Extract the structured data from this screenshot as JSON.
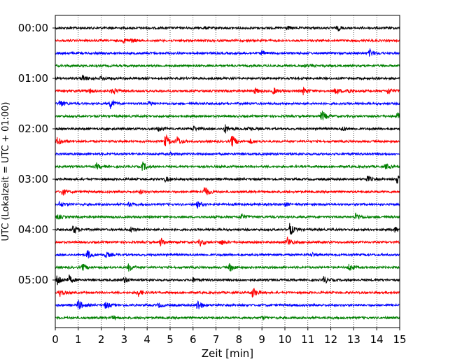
{
  "chart_data": {
    "type": "line",
    "title": "",
    "xlabel": "Zeit  [min]",
    "ylabel": "UTC (Lokalzeit = UTC + 01:00)",
    "xlim": [
      0,
      15
    ],
    "xticks": [
      "0",
      "1",
      "2",
      "3",
      "4",
      "5",
      "6",
      "7",
      "8",
      "9",
      "10",
      "11",
      "12",
      "13",
      "14",
      "15"
    ],
    "yticks": [
      "00:00",
      "01:00",
      "02:00",
      "03:00",
      "04:00",
      "05:00"
    ],
    "grid": "vertical-dotted",
    "trace_colors": [
      "#000000",
      "#ff0000",
      "#0000ff",
      "#008000"
    ],
    "traces": [
      {
        "start": "00:00",
        "events": [
          {
            "t": 12.3,
            "a": 0.35
          },
          {
            "t": 10.1,
            "a": 0.25
          },
          {
            "t": 6.5,
            "a": 0.15
          }
        ]
      },
      {
        "start": "00:15",
        "events": [
          {
            "t": 3.0,
            "a": 0.35
          },
          {
            "t": 3.3,
            "a": 0.2
          }
        ]
      },
      {
        "start": "00:30",
        "events": [
          {
            "t": 9.0,
            "a": 0.3
          },
          {
            "t": 13.7,
            "a": 0.55
          }
        ]
      },
      {
        "start": "00:45",
        "events": [
          {
            "t": 10.9,
            "a": 0.2
          }
        ]
      },
      {
        "start": "01:00",
        "events": [
          {
            "t": 1.2,
            "a": 0.45
          },
          {
            "t": 2.0,
            "a": 0.3
          }
        ]
      },
      {
        "start": "01:15",
        "events": [
          {
            "t": 1.5,
            "a": 0.3
          },
          {
            "t": 2.5,
            "a": 0.5
          },
          {
            "t": 8.7,
            "a": 0.4
          },
          {
            "t": 9.5,
            "a": 0.45
          },
          {
            "t": 10.8,
            "a": 0.5
          },
          {
            "t": 12.2,
            "a": 0.5
          },
          {
            "t": 12.7,
            "a": 0.4
          },
          {
            "t": 14.5,
            "a": 0.5
          }
        ]
      },
      {
        "start": "01:30",
        "events": [
          {
            "t": 0.2,
            "a": 0.55
          },
          {
            "t": 2.4,
            "a": 0.65
          },
          {
            "t": 4.1,
            "a": 0.3
          }
        ]
      },
      {
        "start": "01:45",
        "events": [
          {
            "t": 11.6,
            "a": 0.85
          },
          {
            "t": 14.9,
            "a": 0.4
          }
        ]
      },
      {
        "start": "02:00",
        "events": [
          {
            "t": 4.5,
            "a": 0.3
          },
          {
            "t": 6.0,
            "a": 0.4
          },
          {
            "t": 7.4,
            "a": 0.6
          },
          {
            "t": 8.4,
            "a": 0.3
          },
          {
            "t": 12.5,
            "a": 0.3
          }
        ]
      },
      {
        "start": "02:15",
        "events": [
          {
            "t": 0.1,
            "a": 0.6
          },
          {
            "t": 4.8,
            "a": 0.95
          },
          {
            "t": 5.3,
            "a": 0.7
          },
          {
            "t": 7.7,
            "a": 0.9
          },
          {
            "t": 8.5,
            "a": 0.3
          }
        ]
      },
      {
        "start": "02:30",
        "events": [
          {
            "t": 5.0,
            "a": 0.15
          }
        ]
      },
      {
        "start": "02:45",
        "events": [
          {
            "t": 1.8,
            "a": 0.4
          },
          {
            "t": 3.8,
            "a": 0.65
          },
          {
            "t": 14.4,
            "a": 0.35
          }
        ]
      },
      {
        "start": "03:00",
        "events": [
          {
            "t": 4.8,
            "a": 0.35
          },
          {
            "t": 13.6,
            "a": 0.4
          },
          {
            "t": 14.9,
            "a": 0.8
          }
        ]
      },
      {
        "start": "03:15",
        "events": [
          {
            "t": 0.3,
            "a": 0.5
          },
          {
            "t": 6.5,
            "a": 0.85
          },
          {
            "t": 3.7,
            "a": 0.25
          }
        ]
      },
      {
        "start": "03:30",
        "events": [
          {
            "t": 0.2,
            "a": 0.4
          },
          {
            "t": 3.2,
            "a": 0.25
          },
          {
            "t": 6.2,
            "a": 0.45
          },
          {
            "t": 10.0,
            "a": 0.25
          }
        ]
      },
      {
        "start": "03:45",
        "events": [
          {
            "t": 0.1,
            "a": 0.3
          },
          {
            "t": 8.1,
            "a": 0.5
          },
          {
            "t": 13.1,
            "a": 0.6
          }
        ]
      },
      {
        "start": "04:00",
        "events": [
          {
            "t": 0.8,
            "a": 0.7
          },
          {
            "t": 3.3,
            "a": 0.4
          },
          {
            "t": 10.2,
            "a": 0.95
          },
          {
            "t": 14.8,
            "a": 0.35
          }
        ]
      },
      {
        "start": "04:15",
        "events": [
          {
            "t": 4.6,
            "a": 0.6
          },
          {
            "t": 6.3,
            "a": 0.5
          },
          {
            "t": 7.2,
            "a": 0.4
          },
          {
            "t": 10.1,
            "a": 0.75
          }
        ]
      },
      {
        "start": "04:30",
        "events": [
          {
            "t": 1.4,
            "a": 0.65
          },
          {
            "t": 2.2,
            "a": 0.4
          },
          {
            "t": 11.2,
            "a": 0.25
          }
        ]
      },
      {
        "start": "04:45",
        "events": [
          {
            "t": 1.2,
            "a": 0.5
          },
          {
            "t": 3.2,
            "a": 0.55
          },
          {
            "t": 7.6,
            "a": 0.6
          },
          {
            "t": 12.8,
            "a": 0.5
          }
        ]
      },
      {
        "start": "05:00",
        "events": [
          {
            "t": 0.1,
            "a": 0.85
          },
          {
            "t": 0.6,
            "a": 0.6
          },
          {
            "t": 3.0,
            "a": 0.45
          },
          {
            "t": 6.0,
            "a": 0.3
          },
          {
            "t": 11.7,
            "a": 0.55
          }
        ]
      },
      {
        "start": "05:15",
        "events": [
          {
            "t": 0.2,
            "a": 0.5
          },
          {
            "t": 3.6,
            "a": 0.55
          },
          {
            "t": 8.6,
            "a": 0.8
          }
        ]
      },
      {
        "start": "05:30",
        "events": [
          {
            "t": 1.0,
            "a": 0.8
          },
          {
            "t": 2.2,
            "a": 0.5
          },
          {
            "t": 6.2,
            "a": 0.85
          },
          {
            "t": 4.5,
            "a": 0.3
          }
        ]
      },
      {
        "start": "05:45",
        "events": [
          {
            "t": 2.5,
            "a": 0.2
          },
          {
            "t": 9.0,
            "a": 0.2
          }
        ]
      }
    ]
  }
}
